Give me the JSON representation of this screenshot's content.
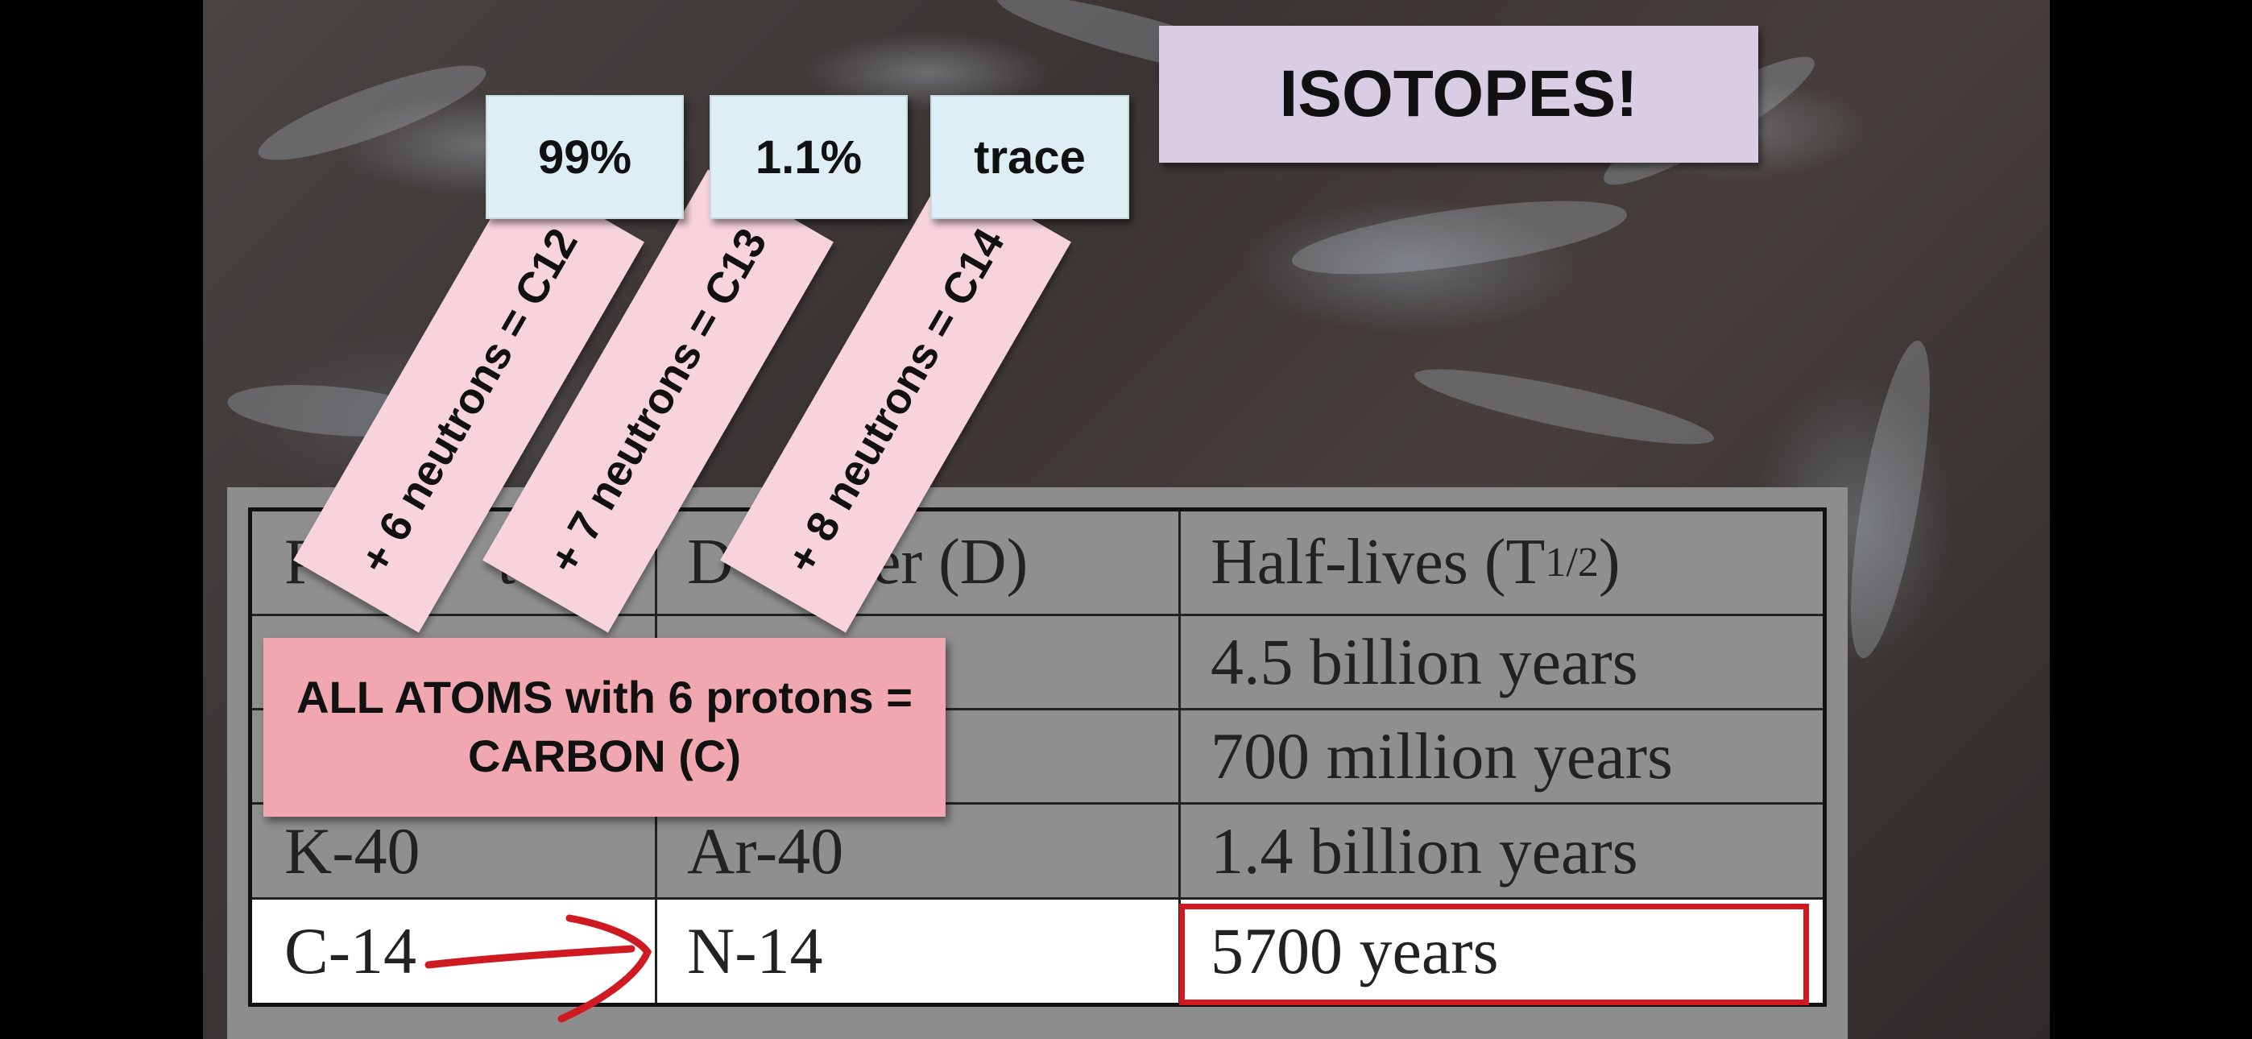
{
  "title": "ISOTOPES!",
  "abundances": [
    "99%",
    "1.1%",
    "trace"
  ],
  "isotope_strips": [
    "+ 6 neutrons = C12",
    "+ 7 neutrons = C13",
    "+ 8 neutrons = C14"
  ],
  "carbon_note": "ALL ATOMS with 6 protons = CARBON (C)",
  "table": {
    "headers": {
      "parent": "P",
      "parent_tail": "t",
      "daughter": "D",
      "daughter_tail": "hter (D)",
      "half_lives": "Half-lives (T",
      "half_sub": "1/2",
      "half_close": ")"
    },
    "rows": [
      {
        "parent": "",
        "daughter": "",
        "half_life": "4.5 billion years"
      },
      {
        "parent": "",
        "daughter": "",
        "half_life": "700 million years"
      },
      {
        "parent": "K-40",
        "daughter": "Ar-40",
        "half_life": "1.4 billion years"
      },
      {
        "parent": "C-14",
        "daughter": "N-14",
        "half_life": "5700 years"
      }
    ]
  },
  "colors": {
    "highlight": "#d01a22",
    "arrow": "#d01a22",
    "title_bg": "#d9cde6",
    "strip_bg": "#f7d3dc",
    "note_bg": "#f0a7b0",
    "pct_bg": "#ddeef4"
  }
}
